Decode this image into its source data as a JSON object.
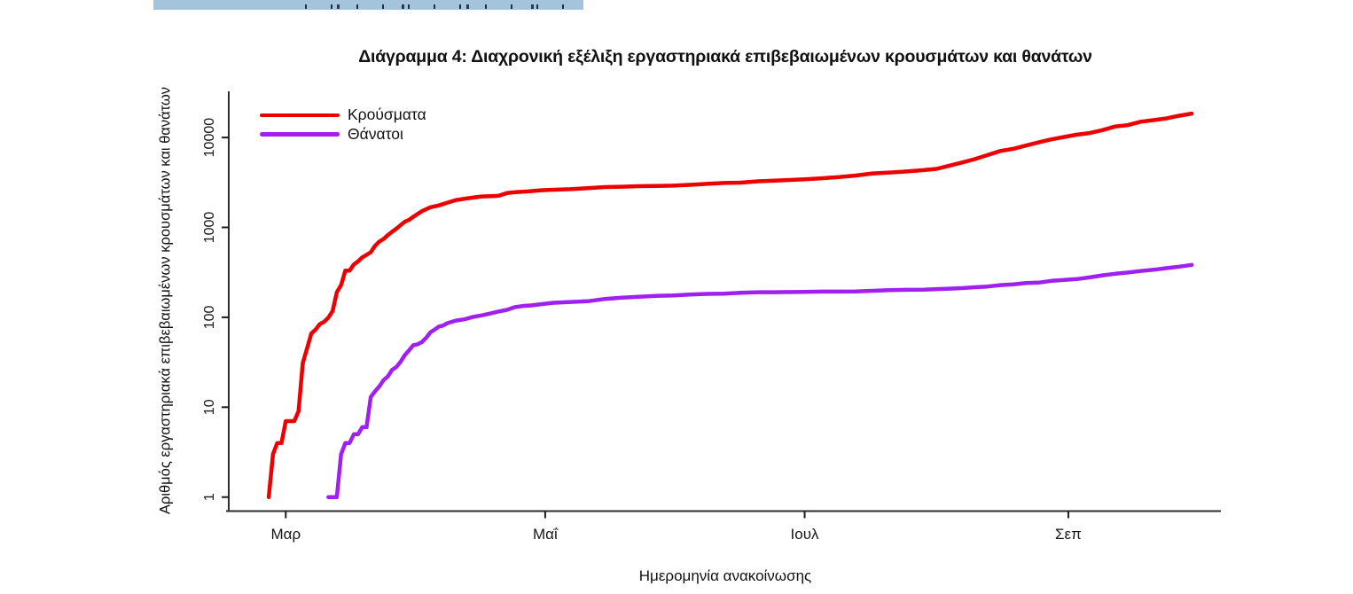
{
  "page": {
    "background": "#FFFFFF"
  },
  "selection_highlight": {
    "color": "#A6C3DC",
    "mark_color": "#15213E"
  },
  "chart_data": {
    "type": "line",
    "title": "Διάγραμμα 4: Διαχρονική εξέλιξη εργαστηριακά επιβεβαιωμένων κρουσμάτων και θανάτων",
    "xlabel": "Ημερομηνία ανακοίνωσης",
    "ylabel": "Αριθμός εργαστηριακά επιβεβαιωμένων κρουσμάτων και θανάτων",
    "yscale": "log",
    "grid": false,
    "legend_position": "top-left",
    "ylim": [
      1,
      10000
    ],
    "yticks": [
      {
        "value": 1,
        "label": "1"
      },
      {
        "value": 10,
        "label": "10"
      },
      {
        "value": 100,
        "label": "100"
      },
      {
        "value": 1000,
        "label": "1000"
      },
      {
        "value": 10000,
        "label": "10000"
      }
    ],
    "xlim": [
      "2020-02-16",
      "2020-10-07"
    ],
    "xticks": [
      {
        "date": "2020-03-01",
        "label": "Μαρ"
      },
      {
        "date": "2020-05-01",
        "label": "Μαΐ"
      },
      {
        "date": "2020-07-01",
        "label": "Ιουλ"
      },
      {
        "date": "2020-09-01",
        "label": "Σεπ"
      }
    ],
    "series": [
      {
        "key": "cases",
        "name": "Κρούσματα",
        "color": "#ED0000",
        "points": [
          [
            "2020-02-26",
            1
          ],
          [
            "2020-02-27",
            3
          ],
          [
            "2020-02-28",
            4
          ],
          [
            "2020-02-29",
            4
          ],
          [
            "2020-03-01",
            7
          ],
          [
            "2020-03-02",
            7
          ],
          [
            "2020-03-03",
            7
          ],
          [
            "2020-03-04",
            9
          ],
          [
            "2020-03-05",
            31
          ],
          [
            "2020-03-06",
            45
          ],
          [
            "2020-03-07",
            66
          ],
          [
            "2020-03-08",
            73
          ],
          [
            "2020-03-09",
            84
          ],
          [
            "2020-03-10",
            89
          ],
          [
            "2020-03-11",
            99
          ],
          [
            "2020-03-12",
            117
          ],
          [
            "2020-03-13",
            190
          ],
          [
            "2020-03-14",
            228
          ],
          [
            "2020-03-15",
            331
          ],
          [
            "2020-03-16",
            331
          ],
          [
            "2020-03-17",
            387
          ],
          [
            "2020-03-18",
            418
          ],
          [
            "2020-03-19",
            464
          ],
          [
            "2020-03-20",
            495
          ],
          [
            "2020-03-21",
            530
          ],
          [
            "2020-03-22",
            624
          ],
          [
            "2020-03-23",
            695
          ],
          [
            "2020-03-24",
            743
          ],
          [
            "2020-03-25",
            821
          ],
          [
            "2020-03-26",
            892
          ],
          [
            "2020-03-27",
            966
          ],
          [
            "2020-03-28",
            1061
          ],
          [
            "2020-03-29",
            1156
          ],
          [
            "2020-03-30",
            1212
          ],
          [
            "2020-03-31",
            1314
          ],
          [
            "2020-04-02",
            1514
          ],
          [
            "2020-04-04",
            1673
          ],
          [
            "2020-04-06",
            1755
          ],
          [
            "2020-04-08",
            1884
          ],
          [
            "2020-04-10",
            2011
          ],
          [
            "2020-04-13",
            2114
          ],
          [
            "2020-04-16",
            2207
          ],
          [
            "2020-04-19",
            2235
          ],
          [
            "2020-04-20",
            2245
          ],
          [
            "2020-04-22",
            2408
          ],
          [
            "2020-04-24",
            2463
          ],
          [
            "2020-04-27",
            2517
          ],
          [
            "2020-04-30",
            2591
          ],
          [
            "2020-05-03",
            2626
          ],
          [
            "2020-05-07",
            2663
          ],
          [
            "2020-05-11",
            2726
          ],
          [
            "2020-05-15",
            2810
          ],
          [
            "2020-05-19",
            2836
          ],
          [
            "2020-05-23",
            2873
          ],
          [
            "2020-05-27",
            2892
          ],
          [
            "2020-05-31",
            2915
          ],
          [
            "2020-06-04",
            2973
          ],
          [
            "2020-06-08",
            3049
          ],
          [
            "2020-06-12",
            3121
          ],
          [
            "2020-06-16",
            3148
          ],
          [
            "2020-06-20",
            3256
          ],
          [
            "2020-06-24",
            3310
          ],
          [
            "2020-06-28",
            3376
          ],
          [
            "2020-07-01",
            3432
          ],
          [
            "2020-07-05",
            3519
          ],
          [
            "2020-07-09",
            3622
          ],
          [
            "2020-07-13",
            3772
          ],
          [
            "2020-07-17",
            3983
          ],
          [
            "2020-07-21",
            4077
          ],
          [
            "2020-07-25",
            4193
          ],
          [
            "2020-07-29",
            4336
          ],
          [
            "2020-08-01",
            4477
          ],
          [
            "2020-08-04",
            4855
          ],
          [
            "2020-08-07",
            5270
          ],
          [
            "2020-08-10",
            5749
          ],
          [
            "2020-08-13",
            6381
          ],
          [
            "2020-08-16",
            7075
          ],
          [
            "2020-08-19",
            7472
          ],
          [
            "2020-08-22",
            8138
          ],
          [
            "2020-08-25",
            8819
          ],
          [
            "2020-08-28",
            9531
          ],
          [
            "2020-08-31",
            10134
          ],
          [
            "2020-09-03",
            10757
          ],
          [
            "2020-09-06",
            11211
          ],
          [
            "2020-09-09",
            12080
          ],
          [
            "2020-09-12",
            13240
          ],
          [
            "2020-09-15",
            13730
          ],
          [
            "2020-09-18",
            14978
          ],
          [
            "2020-09-21",
            15595
          ],
          [
            "2020-09-24",
            16286
          ],
          [
            "2020-09-27",
            17444
          ],
          [
            "2020-09-30",
            18475
          ]
        ]
      },
      {
        "key": "deaths",
        "name": "Θάνατοι",
        "color": "#A020F0",
        "points": [
          [
            "2020-03-11",
            1
          ],
          [
            "2020-03-12",
            1
          ],
          [
            "2020-03-13",
            1
          ],
          [
            "2020-03-14",
            3
          ],
          [
            "2020-03-15",
            4
          ],
          [
            "2020-03-16",
            4
          ],
          [
            "2020-03-17",
            5
          ],
          [
            "2020-03-18",
            5
          ],
          [
            "2020-03-19",
            6
          ],
          [
            "2020-03-20",
            6
          ],
          [
            "2020-03-21",
            13
          ],
          [
            "2020-03-22",
            15
          ],
          [
            "2020-03-23",
            17
          ],
          [
            "2020-03-24",
            20
          ],
          [
            "2020-03-25",
            22
          ],
          [
            "2020-03-26",
            26
          ],
          [
            "2020-03-27",
            28
          ],
          [
            "2020-03-28",
            32
          ],
          [
            "2020-03-29",
            38
          ],
          [
            "2020-03-30",
            43
          ],
          [
            "2020-03-31",
            49
          ],
          [
            "2020-04-01",
            50
          ],
          [
            "2020-04-02",
            53
          ],
          [
            "2020-04-03",
            59
          ],
          [
            "2020-04-04",
            68
          ],
          [
            "2020-04-05",
            73
          ],
          [
            "2020-04-06",
            79
          ],
          [
            "2020-04-07",
            81
          ],
          [
            "2020-04-08",
            86
          ],
          [
            "2020-04-10",
            92
          ],
          [
            "2020-04-12",
            95
          ],
          [
            "2020-04-14",
            101
          ],
          [
            "2020-04-16",
            105
          ],
          [
            "2020-04-18",
            110
          ],
          [
            "2020-04-20",
            116
          ],
          [
            "2020-04-22",
            121
          ],
          [
            "2020-04-24",
            130
          ],
          [
            "2020-04-26",
            134
          ],
          [
            "2020-04-28",
            136
          ],
          [
            "2020-04-30",
            140
          ],
          [
            "2020-05-03",
            145
          ],
          [
            "2020-05-07",
            148
          ],
          [
            "2020-05-11",
            151
          ],
          [
            "2020-05-15",
            160
          ],
          [
            "2020-05-19",
            165
          ],
          [
            "2020-05-23",
            169
          ],
          [
            "2020-05-27",
            173
          ],
          [
            "2020-05-31",
            175
          ],
          [
            "2020-06-04",
            179
          ],
          [
            "2020-06-08",
            182
          ],
          [
            "2020-06-12",
            183
          ],
          [
            "2020-06-16",
            187
          ],
          [
            "2020-06-20",
            190
          ],
          [
            "2020-06-24",
            190
          ],
          [
            "2020-06-28",
            191
          ],
          [
            "2020-07-01",
            192
          ],
          [
            "2020-07-05",
            193
          ],
          [
            "2020-07-09",
            193
          ],
          [
            "2020-07-13",
            194
          ],
          [
            "2020-07-17",
            197
          ],
          [
            "2020-07-21",
            201
          ],
          [
            "2020-07-25",
            202
          ],
          [
            "2020-07-29",
            203
          ],
          [
            "2020-08-01",
            206
          ],
          [
            "2020-08-04",
            208
          ],
          [
            "2020-08-07",
            211
          ],
          [
            "2020-08-10",
            216
          ],
          [
            "2020-08-13",
            220
          ],
          [
            "2020-08-16",
            228
          ],
          [
            "2020-08-19",
            232
          ],
          [
            "2020-08-22",
            240
          ],
          [
            "2020-08-25",
            243
          ],
          [
            "2020-08-28",
            254
          ],
          [
            "2020-08-31",
            260
          ],
          [
            "2020-09-03",
            266
          ],
          [
            "2020-09-06",
            278
          ],
          [
            "2020-09-09",
            293
          ],
          [
            "2020-09-12",
            305
          ],
          [
            "2020-09-15",
            315
          ],
          [
            "2020-09-18",
            327
          ],
          [
            "2020-09-21",
            338
          ],
          [
            "2020-09-24",
            352
          ],
          [
            "2020-09-27",
            366
          ],
          [
            "2020-09-30",
            383
          ]
        ]
      }
    ]
  }
}
